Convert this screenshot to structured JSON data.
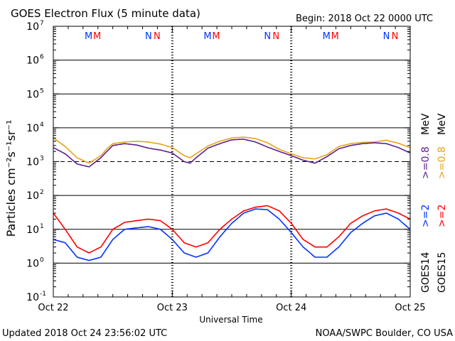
{
  "chart_data": {
    "type": "line",
    "title": "GOES Electron Flux (5 minute data)",
    "begin": "Begin: 2018 Oct 22 0000 UTC",
    "xlabel": "Universal Time",
    "ylabel": "Particles cm⁻²s⁻¹sr⁻¹",
    "footer_left": "Updated 2018 Oct 24 23:56:02 UTC",
    "footer_right": "NOAA/SWPC Boulder, CO USA",
    "y_scale": "log",
    "ylim": [
      0.1,
      10000000
    ],
    "xlim": [
      "2018-10-22T00:00",
      "2018-10-25T00:00"
    ],
    "x_ticks": [
      "Oct 22",
      "Oct 23",
      "Oct 24",
      "Oct 25"
    ],
    "y_tick_labels": [
      {
        "mant": "10",
        "exp": "-1"
      },
      {
        "mant": "10",
        "exp": "0"
      },
      {
        "mant": "10",
        "exp": "1"
      },
      {
        "mant": "10",
        "exp": "2"
      },
      {
        "mant": "10",
        "exp": "3"
      },
      {
        "mant": "10",
        "exp": "4"
      },
      {
        "mant": "10",
        "exp": "5"
      },
      {
        "mant": "10",
        "exp": "6"
      },
      {
        "mant": "10",
        "exp": "7"
      }
    ],
    "threshold_line": 1000,
    "day_markers": [
      {
        "M1": "M",
        "M2": "M",
        "N1": "N",
        "N2": "N"
      },
      {
        "M1": "M",
        "M2": "M",
        "N1": "N",
        "N2": "N"
      },
      {
        "M1": "M",
        "M2": "M",
        "N1": "N",
        "N2": "N"
      }
    ],
    "legend": {
      "goes14": "GOES14",
      "goes15": "GOES15",
      "ge2": ">=2",
      "ge08": ">=0.8",
      "mev": "MeV"
    },
    "series": [
      {
        "name": "GOES15 >=0.8 MeV",
        "color": "#e8a21c",
        "x": [
          0,
          0.1,
          0.2,
          0.3,
          0.4,
          0.45,
          0.5,
          0.6,
          0.7,
          0.8,
          0.9,
          1.0,
          1.1,
          1.15,
          1.2,
          1.3,
          1.4,
          1.5,
          1.6,
          1.7,
          1.8,
          1.9,
          2.0,
          2.1,
          2.2,
          2.3,
          2.4,
          2.5,
          2.6,
          2.7,
          2.8,
          2.9,
          3.0
        ],
        "values": [
          5000,
          2800,
          1300,
          900,
          1500,
          2400,
          3400,
          3800,
          4000,
          3800,
          3300,
          2600,
          1500,
          1300,
          1700,
          2900,
          4000,
          5000,
          5300,
          4800,
          3600,
          2300,
          1700,
          1300,
          1200,
          1600,
          2800,
          3400,
          3700,
          3800,
          4300,
          3500,
          2600
        ]
      },
      {
        "name": "GOES14 >=0.8 MeV",
        "color": "#5b1f8c",
        "x": [
          0,
          0.1,
          0.2,
          0.3,
          0.4,
          0.45,
          0.5,
          0.6,
          0.7,
          0.8,
          0.9,
          1.0,
          1.1,
          1.15,
          1.2,
          1.3,
          1.4,
          1.5,
          1.6,
          1.7,
          1.8,
          1.9,
          2.0,
          2.1,
          2.2,
          2.3,
          2.4,
          2.5,
          2.6,
          2.7,
          2.8,
          2.9,
          3.0
        ],
        "values": [
          2600,
          1700,
          850,
          700,
          1300,
          2000,
          3000,
          3400,
          3100,
          2500,
          2200,
          1800,
          1000,
          900,
          1300,
          2500,
          3400,
          4400,
          4600,
          3800,
          2700,
          2000,
          1500,
          1100,
          900,
          1400,
          2400,
          3000,
          3400,
          3600,
          3400,
          2600,
          1800
        ]
      },
      {
        "name": "GOES15 >=2 MeV",
        "color": "#ff0000",
        "x": [
          0,
          0.1,
          0.2,
          0.3,
          0.4,
          0.5,
          0.6,
          0.7,
          0.8,
          0.9,
          1.0,
          1.1,
          1.2,
          1.3,
          1.4,
          1.5,
          1.6,
          1.7,
          1.8,
          1.9,
          2.0,
          2.1,
          2.2,
          2.3,
          2.4,
          2.5,
          2.6,
          2.7,
          2.8,
          2.9,
          3.0
        ],
        "values": [
          30,
          10,
          3,
          2,
          3,
          10,
          16,
          18,
          20,
          18,
          10,
          4,
          3,
          4,
          10,
          20,
          35,
          45,
          50,
          35,
          15,
          5,
          3,
          3,
          6,
          15,
          25,
          35,
          40,
          30,
          20
        ]
      },
      {
        "name": "GOES14 >=2 MeV",
        "color": "#0033ff",
        "x": [
          0,
          0.1,
          0.2,
          0.3,
          0.4,
          0.5,
          0.6,
          0.7,
          0.8,
          0.9,
          1.0,
          1.1,
          1.2,
          1.3,
          1.4,
          1.5,
          1.6,
          1.7,
          1.8,
          1.9,
          2.0,
          2.1,
          2.2,
          2.3,
          2.4,
          2.5,
          2.6,
          2.7,
          2.8,
          2.9,
          3.0
        ],
        "values": [
          5,
          4,
          1.5,
          1.2,
          1.5,
          5,
          10,
          11,
          12,
          10,
          5,
          2,
          1.5,
          2,
          6,
          15,
          30,
          40,
          38,
          20,
          8,
          3,
          1.5,
          1.5,
          3,
          8,
          15,
          25,
          30,
          20,
          10
        ]
      }
    ]
  }
}
